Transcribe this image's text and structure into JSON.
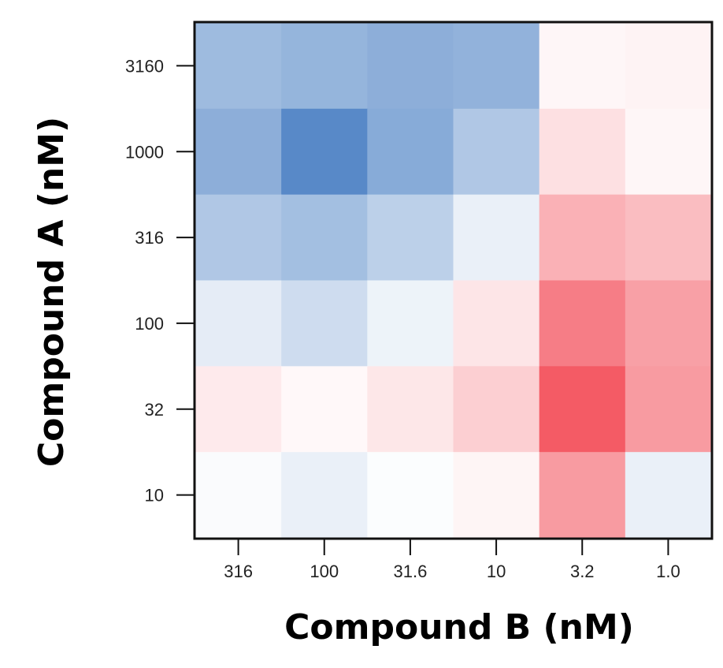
{
  "chart_data": {
    "type": "heatmap",
    "xlabel": "Compound B (nM)",
    "ylabel": "Compound A (nM)",
    "x_categories": [
      "316",
      "100",
      "31.6",
      "10",
      "3.2",
      "1.0"
    ],
    "y_categories": [
      "3160",
      "1000",
      "316",
      "100",
      "32",
      "10"
    ],
    "values": [
      [
        -0.55,
        -0.6,
        -0.65,
        -0.62,
        0.05,
        0.07
      ],
      [
        -0.65,
        -0.95,
        -0.68,
        -0.45,
        0.18,
        0.05
      ],
      [
        -0.45,
        -0.52,
        -0.38,
        -0.12,
        0.45,
        0.38
      ],
      [
        -0.15,
        -0.28,
        -0.1,
        0.15,
        0.75,
        0.55
      ],
      [
        0.12,
        0.04,
        0.14,
        0.28,
        0.95,
        0.58
      ],
      [
        -0.03,
        -0.12,
        -0.02,
        0.06,
        0.58,
        -0.12
      ]
    ],
    "color_scale": {
      "negative": "#4f83c5",
      "neutral": "#ffffff",
      "positive": "#f3525d",
      "range": [
        -1,
        1
      ]
    },
    "grid": false,
    "legend": "none"
  }
}
